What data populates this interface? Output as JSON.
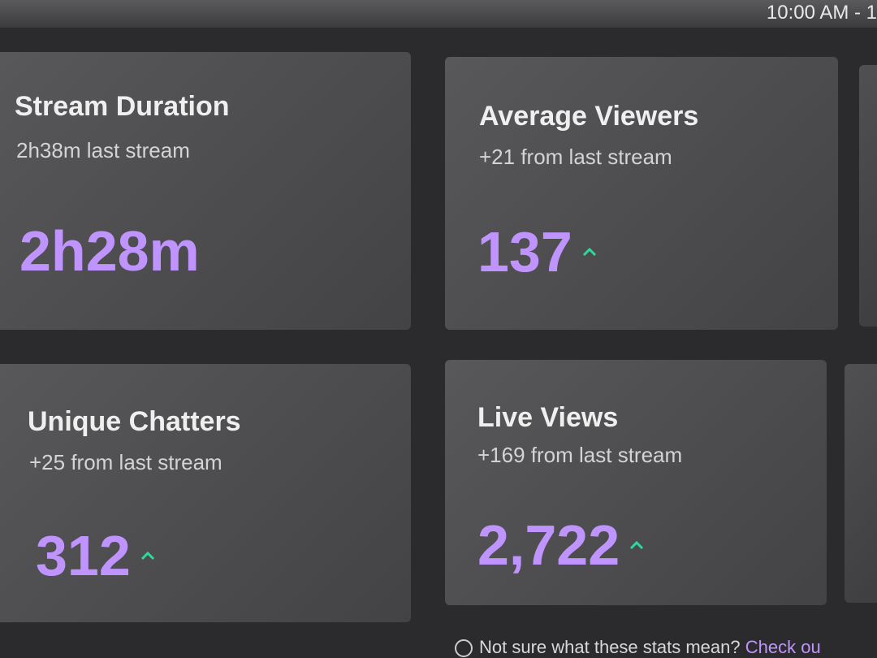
{
  "header": {
    "time": "10:00 AM - 1"
  },
  "cards": [
    {
      "title": "Stream Duration",
      "subtitle": "2h38m last stream",
      "value": "2h28m"
    },
    {
      "title": "Average Viewers",
      "subtitle": "+21 from last stream",
      "value": "137"
    },
    {
      "title": "Unique Chatters",
      "subtitle": "+25 from last stream",
      "value": "312"
    },
    {
      "title": "Live Views",
      "subtitle": "+169 from last stream",
      "value": "2,722"
    }
  ],
  "footer": {
    "text": "Not sure what these stats mean?",
    "link": "Check ou"
  }
}
